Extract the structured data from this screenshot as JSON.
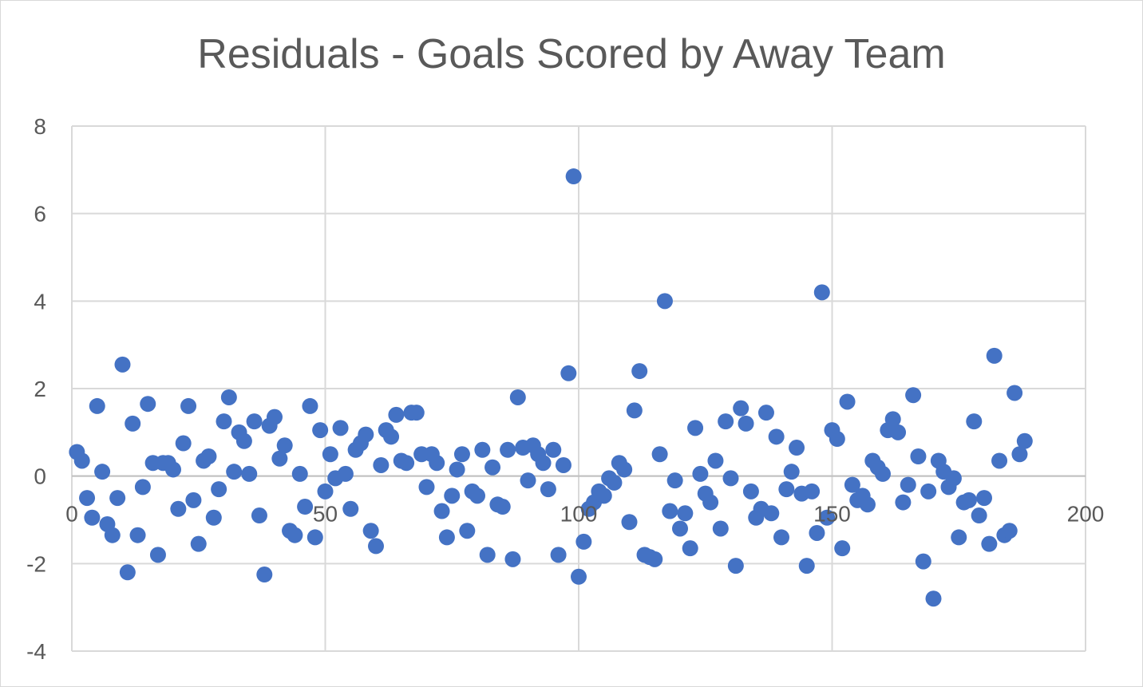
{
  "chart_data": {
    "type": "scatter",
    "title": "Residuals - Goals Scored by Away Team",
    "xlabel": "",
    "ylabel": "",
    "xlim": [
      0,
      200
    ],
    "ylim": [
      -4,
      8
    ],
    "x_ticks": [
      0,
      50,
      100,
      150,
      200
    ],
    "y_ticks": [
      -4,
      -2,
      0,
      2,
      4,
      6,
      8
    ],
    "grid": true,
    "legend": "none",
    "marker_color": "#4472C4",
    "series": [
      {
        "x": [
          1,
          2,
          3,
          4,
          5,
          6,
          7,
          8,
          9,
          10,
          11,
          12,
          13,
          14,
          15,
          16,
          17,
          18,
          19,
          20,
          21,
          22,
          23,
          24,
          25,
          26,
          27,
          28,
          29,
          30,
          31,
          32,
          33,
          34,
          35,
          36,
          37,
          38,
          39,
          40,
          41,
          42,
          43,
          44,
          45,
          46,
          47,
          48,
          49,
          50,
          51,
          52,
          53,
          54,
          55,
          56,
          57,
          58,
          59,
          60,
          61,
          62,
          63,
          64,
          65,
          66,
          67,
          68,
          69,
          70,
          71,
          72,
          73,
          74,
          75,
          76,
          77,
          78,
          79,
          80,
          81,
          82,
          83,
          84,
          85,
          86,
          87,
          88,
          89,
          90,
          91,
          92,
          93,
          94,
          95,
          96,
          97,
          98,
          99,
          100,
          101,
          102,
          103,
          104,
          105,
          106,
          107,
          108,
          109,
          110,
          111,
          112,
          113,
          114,
          115,
          116,
          117,
          118,
          119,
          120,
          121,
          122,
          123,
          124,
          125,
          126,
          127,
          128,
          129,
          130,
          131,
          132,
          133,
          134,
          135,
          136,
          137,
          138,
          139,
          140,
          141,
          142,
          143,
          144,
          145,
          146,
          147,
          148,
          149,
          150,
          151,
          152,
          153,
          154,
          155,
          156,
          157,
          158,
          159,
          160,
          161,
          162,
          163,
          164,
          165,
          166,
          167,
          168,
          169,
          170,
          171,
          172,
          173,
          174,
          175,
          176,
          177,
          178,
          179,
          180,
          181,
          182,
          183,
          184,
          185,
          186,
          187,
          188
        ],
        "y": [
          0.55,
          0.35,
          -0.5,
          -0.95,
          1.6,
          0.1,
          -1.1,
          -1.35,
          -0.5,
          2.55,
          -2.2,
          1.2,
          -1.35,
          -0.25,
          1.65,
          0.3,
          -1.8,
          0.3,
          0.3,
          0.15,
          -0.75,
          0.75,
          1.6,
          -0.55,
          -1.55,
          0.35,
          0.45,
          -0.95,
          -0.3,
          1.25,
          1.8,
          0.1,
          1.0,
          0.8,
          0.05,
          1.25,
          -0.9,
          -2.25,
          1.15,
          1.35,
          0.4,
          0.7,
          -1.25,
          -1.35,
          0.05,
          -0.7,
          1.6,
          -1.4,
          1.05,
          -0.35,
          0.5,
          -0.05,
          1.1,
          0.05,
          -0.75,
          0.6,
          0.75,
          0.95,
          -1.25,
          -1.6,
          0.25,
          1.05,
          0.9,
          1.4,
          0.35,
          0.3,
          1.45,
          1.45,
          0.5,
          -0.25,
          0.5,
          0.3,
          -0.8,
          -1.4,
          -0.45,
          0.15,
          0.5,
          -1.25,
          -0.35,
          -0.45,
          0.6,
          -1.8,
          0.2,
          -0.65,
          -0.7,
          0.6,
          -1.9,
          1.8,
          0.65,
          -0.1,
          0.7,
          0.5,
          0.3,
          -0.3,
          0.6,
          -1.8,
          0.25,
          2.35,
          6.85,
          -2.3,
          -1.5,
          -0.75,
          -0.6,
          -0.35,
          -0.45,
          -0.05,
          -0.15,
          0.3,
          0.15,
          -1.05,
          1.5,
          2.4,
          -1.8,
          -1.85,
          -1.9,
          0.5,
          4.0,
          -0.8,
          -0.1,
          -1.2,
          -0.85,
          -1.65,
          1.1,
          0.05,
          -0.4,
          -0.6,
          0.35,
          -1.2,
          1.25,
          -0.05,
          -2.05,
          1.55,
          1.2,
          -0.35,
          -0.95,
          -0.75,
          1.45,
          -0.85,
          0.9,
          -1.4,
          -0.3,
          0.1,
          0.65,
          -0.4,
          -2.05,
          -0.35,
          -1.3,
          4.2,
          -0.95,
          1.05,
          0.85,
          -1.65,
          1.7,
          -0.2,
          -0.55,
          -0.45,
          -0.65,
          0.35,
          0.2,
          0.05,
          1.05,
          1.3,
          1.0,
          -0.6,
          -0.2,
          1.85,
          0.45,
          -1.95,
          -0.35,
          -2.8,
          0.35,
          0.1,
          -0.25,
          -0.05,
          -1.4,
          -0.6,
          -0.55,
          1.25,
          -0.9,
          -0.5,
          -1.55,
          2.75,
          0.35,
          -1.35,
          -1.25,
          1.9,
          0.5,
          0.8
        ]
      }
    ]
  }
}
